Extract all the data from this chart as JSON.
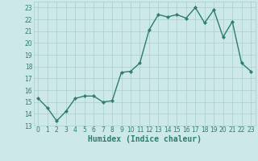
{
  "x": [
    0,
    1,
    2,
    3,
    4,
    5,
    6,
    7,
    8,
    9,
    10,
    11,
    12,
    13,
    14,
    15,
    16,
    17,
    18,
    19,
    20,
    21,
    22,
    23
  ],
  "y": [
    15.3,
    14.5,
    13.4,
    14.2,
    15.3,
    15.5,
    15.5,
    15.0,
    15.1,
    17.5,
    17.6,
    18.3,
    21.1,
    22.4,
    22.2,
    22.4,
    22.1,
    23.0,
    21.7,
    22.8,
    20.5,
    21.8,
    18.3,
    17.6
  ],
  "line_color": "#2e7d6e",
  "marker": "D",
  "marker_size": 2.2,
  "bg_color": "#cce8e8",
  "grid_color": "#aacece",
  "xlabel": "Humidex (Indice chaleur)",
  "xlim": [
    -0.5,
    23.5
  ],
  "ylim": [
    13,
    23.5
  ],
  "yticks": [
    13,
    14,
    15,
    16,
    17,
    18,
    19,
    20,
    21,
    22,
    23
  ],
  "xticks": [
    0,
    1,
    2,
    3,
    4,
    5,
    6,
    7,
    8,
    9,
    10,
    11,
    12,
    13,
    14,
    15,
    16,
    17,
    18,
    19,
    20,
    21,
    22,
    23
  ],
  "tick_label_fontsize": 5.5,
  "xlabel_fontsize": 7.0,
  "tick_color": "#2e7d6e",
  "line_width": 1.0
}
